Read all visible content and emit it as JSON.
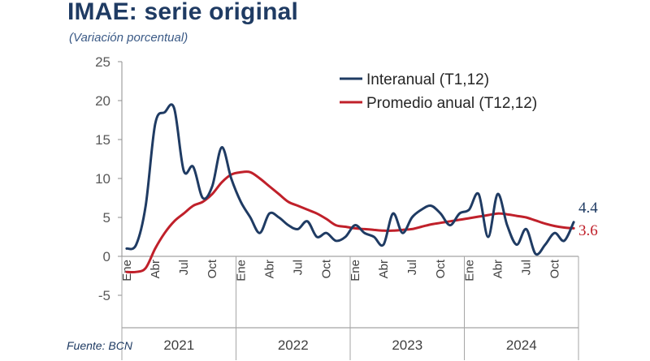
{
  "title": "IMAE: serie original",
  "subtitle": "(Variación porcentual)",
  "source": "Fuente: BCN",
  "chart_data": {
    "type": "line",
    "ylim": [
      -5,
      25
    ],
    "yticks": [
      -5,
      0,
      5,
      10,
      15,
      20,
      25
    ],
    "grid": false,
    "legend_position": "top-right",
    "month_labels": [
      "Ene",
      "Abr",
      "Jul",
      "Oct"
    ],
    "years": [
      "2021",
      "2022",
      "2023",
      "2024"
    ],
    "x": [
      "2021-01",
      "2021-02",
      "2021-03",
      "2021-04",
      "2021-05",
      "2021-06",
      "2021-07",
      "2021-08",
      "2021-09",
      "2021-10",
      "2021-11",
      "2021-12",
      "2022-01",
      "2022-02",
      "2022-03",
      "2022-04",
      "2022-05",
      "2022-06",
      "2022-07",
      "2022-08",
      "2022-09",
      "2022-10",
      "2022-11",
      "2022-12",
      "2023-01",
      "2023-02",
      "2023-03",
      "2023-04",
      "2023-05",
      "2023-06",
      "2023-07",
      "2023-08",
      "2023-09",
      "2023-10",
      "2023-11",
      "2023-12",
      "2024-01",
      "2024-02",
      "2024-03",
      "2024-04",
      "2024-05",
      "2024-06",
      "2024-07",
      "2024-08",
      "2024-09",
      "2024-10",
      "2024-11",
      "2024-12"
    ],
    "series": [
      {
        "name": "Interanual (T1,12)",
        "color": "#1f3b63",
        "values": [
          1.0,
          1.5,
          6.5,
          17.0,
          18.5,
          19.0,
          11.0,
          11.5,
          7.5,
          9.0,
          14.0,
          10.0,
          7.0,
          5.0,
          3.0,
          5.5,
          5.0,
          4.0,
          3.5,
          4.5,
          2.5,
          3.0,
          2.0,
          2.5,
          4.0,
          3.0,
          2.5,
          1.5,
          5.5,
          3.0,
          5.0,
          6.0,
          6.5,
          5.5,
          4.0,
          5.5,
          6.0,
          8.0,
          2.5,
          8.0,
          4.0,
          1.5,
          3.5,
          0.3,
          1.5,
          3.0,
          2.0,
          4.4
        ]
      },
      {
        "name": "Promedio anual (T12,12)",
        "color": "#c0202a",
        "values": [
          -2.0,
          -2.0,
          -1.5,
          1.0,
          3.0,
          4.5,
          5.5,
          6.5,
          7.0,
          8.0,
          9.5,
          10.5,
          10.8,
          10.8,
          10.0,
          9.0,
          8.0,
          7.0,
          6.5,
          6.0,
          5.5,
          4.8,
          4.0,
          3.8,
          3.6,
          3.5,
          3.4,
          3.3,
          3.3,
          3.4,
          3.5,
          3.8,
          4.1,
          4.3,
          4.5,
          4.7,
          4.9,
          5.1,
          5.3,
          5.5,
          5.4,
          5.2,
          5.0,
          4.6,
          4.2,
          3.9,
          3.7,
          3.6
        ]
      }
    ],
    "end_labels": [
      "4.4",
      "3.6"
    ]
  }
}
